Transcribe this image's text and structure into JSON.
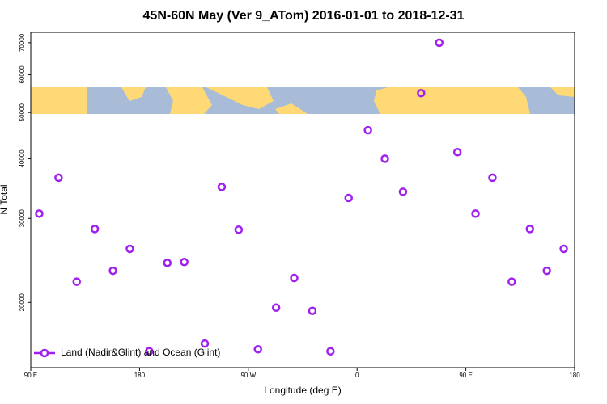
{
  "chart_data": {
    "type": "scatter",
    "title": "45N-60N May (Ver 9_ATom)   2016-01-01 to 2018-12-31",
    "x_label": "Longitude (deg E)",
    "y_label": "N Total",
    "xlim": [
      90,
      540
    ],
    "xticks": [
      {
        "value": 90,
        "label": "90 E"
      },
      180,
      {
        "value": 270,
        "label": "90 W"
      },
      {
        "value": 360,
        "label": "0"
      },
      {
        "value": 450,
        "label": "90 E"
      },
      {
        "value": 540,
        "label": "180"
      }
    ],
    "ylim": [
      14600,
      73600
    ],
    "log_y": true,
    "yticks": [
      20000,
      30000,
      40000,
      50000,
      60000,
      70000
    ],
    "legend": "bottom-left",
    "series": [
      {
        "name": "Land (Nadir&Glint) and Ocean (Glint)",
        "color": "#a020f0",
        "x": [
          97,
          113,
          128,
          143,
          158,
          172,
          188,
          203,
          217,
          234,
          248,
          262,
          278,
          293,
          308,
          323,
          338,
          353,
          369,
          383,
          398,
          413,
          428,
          443,
          458,
          472,
          488,
          503,
          517,
          531
        ],
        "values": [
          30700,
          36500,
          22100,
          28500,
          23300,
          25900,
          15800,
          24200,
          24300,
          16400,
          34900,
          28400,
          15950,
          19500,
          22500,
          19200,
          15800,
          33100,
          45900,
          40000,
          34100,
          54900,
          70000,
          41300,
          30700,
          36500,
          22100,
          28500,
          23300,
          25900
        ]
      }
    ]
  }
}
